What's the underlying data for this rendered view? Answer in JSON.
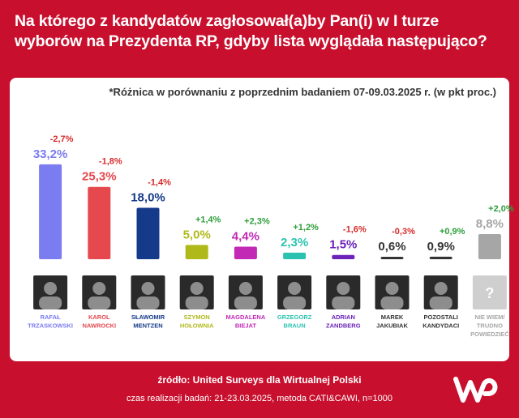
{
  "title": "Na którego z kandydatów zagłosował(a)by Pan(i) w I turze wyborów na Prezydenta RP, gdyby lista wyglądała następująco?",
  "note": "*Różnica w porównaniu z poprzednim badaniem 07-09.03.2025 r. (w pkt proc.)",
  "footer": {
    "source": "źródło: United Surveys dla Wirtualnej Polski",
    "meta": "czas realizacji badań: 21-23.03.2025, metoda CATI&CAWI, n=1000"
  },
  "colors": {
    "background": "#c8102e",
    "positive": "#2e9e3a",
    "negative": "#d62b2b"
  },
  "chart_data": {
    "type": "bar",
    "categories": [
      "RAFAŁ TRZASKOWSKI",
      "KAROL NAWROCKI",
      "SŁAWOMIR MENTZEN",
      "SZYMON HOŁOWNIA",
      "MAGDALENA BIEJAT",
      "GRZEGORZ BRAUN",
      "ADRIAN ZANDBERG",
      "MAREK JAKUBIAK",
      "POZOSTALI KANDYDACI",
      "NIE WIEM/ TRUDNO POWIEDZIEĆ"
    ],
    "name_lines": [
      [
        "RAFAŁ",
        "TRZASKOWSKI"
      ],
      [
        "KAROL",
        "NAWROCKI"
      ],
      [
        "SŁAWOMIR",
        "MENTZEN"
      ],
      [
        "SZYMON",
        "HOŁOWNIA"
      ],
      [
        "MAGDALENA",
        "BIEJAT"
      ],
      [
        "GRZEGORZ",
        "BRAUN"
      ],
      [
        "ADRIAN",
        "ZANDBERG"
      ],
      [
        "MAREK",
        "JAKUBIAK"
      ],
      [
        "POZOSTALI",
        "KANDYDACI"
      ],
      [
        "NIE WIEM/",
        "TRUDNO",
        "POWIEDZIEĆ"
      ]
    ],
    "values": [
      33.2,
      25.3,
      18.0,
      5.0,
      4.4,
      2.3,
      1.5,
      0.6,
      0.9,
      8.8
    ],
    "value_labels": [
      "33,2%",
      "25,3%",
      "18,0%",
      "5,0%",
      "4,4%",
      "2,3%",
      "1,5%",
      "0,6%",
      "0,9%",
      "8,8%"
    ],
    "changes": [
      "-2,7%",
      "-1,8%",
      "-1,4%",
      "+1,4%",
      "+2,3%",
      "+1,2%",
      "-1,6%",
      "-0,3%",
      "+0,9%",
      "+2,0%"
    ],
    "bar_colors": [
      "#7a7cf0",
      "#e5484d",
      "#163a8a",
      "#b0b91a",
      "#c22ab5",
      "#2bc3b0",
      "#6a22b8",
      "#333333",
      "#333333",
      "#a6a6a6"
    ],
    "label_colors": [
      "#7a7cf0",
      "#e5484d",
      "#163a8a",
      "#b0b91a",
      "#c22ab5",
      "#2bc3b0",
      "#6a22b8",
      "#333333",
      "#333333",
      "#a6a6a6"
    ],
    "photo_placeholders": [
      "",
      "",
      "",
      "",
      "",
      "",
      "",
      "",
      "",
      "?"
    ],
    "ylim": [
      0,
      34
    ]
  }
}
